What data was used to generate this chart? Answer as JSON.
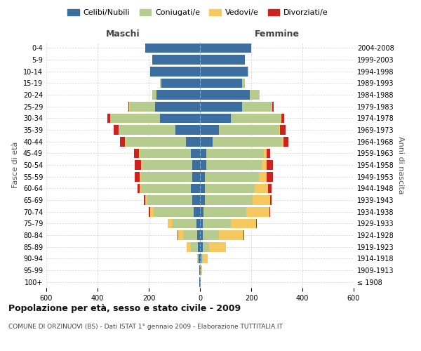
{
  "age_groups": [
    "100+",
    "95-99",
    "90-94",
    "85-89",
    "80-84",
    "75-79",
    "70-74",
    "65-69",
    "60-64",
    "55-59",
    "50-54",
    "45-49",
    "40-44",
    "35-39",
    "30-34",
    "25-29",
    "20-24",
    "15-19",
    "10-14",
    "5-9",
    "0-4"
  ],
  "birth_years": [
    "≤ 1908",
    "1909-1913",
    "1914-1918",
    "1919-1923",
    "1924-1928",
    "1929-1933",
    "1934-1938",
    "1939-1943",
    "1944-1948",
    "1949-1953",
    "1954-1958",
    "1959-1963",
    "1964-1968",
    "1969-1973",
    "1974-1978",
    "1979-1983",
    "1984-1988",
    "1989-1993",
    "1994-1998",
    "1999-2003",
    "2004-2008"
  ],
  "male": {
    "celibi": [
      2,
      3,
      5,
      8,
      10,
      15,
      25,
      30,
      35,
      30,
      30,
      35,
      55,
      95,
      155,
      175,
      170,
      150,
      195,
      185,
      215
    ],
    "coniugati": [
      0,
      0,
      3,
      28,
      55,
      95,
      155,
      175,
      195,
      200,
      195,
      200,
      235,
      220,
      195,
      100,
      15,
      5,
      0,
      0,
      0
    ],
    "vedovi": [
      0,
      0,
      2,
      15,
      20,
      15,
      15,
      10,
      5,
      5,
      5,
      3,
      2,
      2,
      2,
      2,
      2,
      0,
      0,
      0,
      0
    ],
    "divorziati": [
      0,
      0,
      0,
      0,
      2,
      2,
      5,
      5,
      10,
      20,
      25,
      20,
      20,
      20,
      10,
      2,
      0,
      0,
      0,
      0,
      0
    ]
  },
  "female": {
    "nubili": [
      2,
      3,
      5,
      10,
      10,
      10,
      15,
      20,
      20,
      20,
      25,
      25,
      50,
      75,
      120,
      165,
      195,
      165,
      185,
      175,
      200
    ],
    "coniugate": [
      0,
      0,
      5,
      25,
      65,
      110,
      165,
      185,
      195,
      210,
      215,
      225,
      270,
      235,
      195,
      115,
      35,
      10,
      5,
      0,
      0
    ],
    "vedove": [
      2,
      5,
      20,
      65,
      95,
      100,
      90,
      70,
      50,
      30,
      20,
      10,
      5,
      3,
      3,
      2,
      2,
      0,
      0,
      0,
      0
    ],
    "divorziate": [
      0,
      0,
      0,
      2,
      2,
      2,
      5,
      5,
      15,
      25,
      25,
      15,
      20,
      20,
      10,
      5,
      2,
      0,
      0,
      0,
      0
    ]
  },
  "colors": {
    "celibi": "#3c6e9f",
    "coniugati": "#b5cc8e",
    "vedovi": "#f5c860",
    "divorziati": "#cc2222"
  },
  "title": "Popolazione per età, sesso e stato civile - 2009",
  "subtitle": "COMUNE DI ORZINUOVI (BS) - Dati ISTAT 1° gennaio 2009 - Elaborazione TUTTITALIA.IT",
  "xlim": 600,
  "legend_labels": [
    "Celibi/Nubili",
    "Coniugati/e",
    "Vedovi/e",
    "Divorziati/e"
  ],
  "ylabel_left": "Fasce di età",
  "ylabel_right": "Anni di nascita",
  "xlabel_left": "Maschi",
  "xlabel_right": "Femmine",
  "bg_color": "#ffffff",
  "grid_color": "#cccccc"
}
